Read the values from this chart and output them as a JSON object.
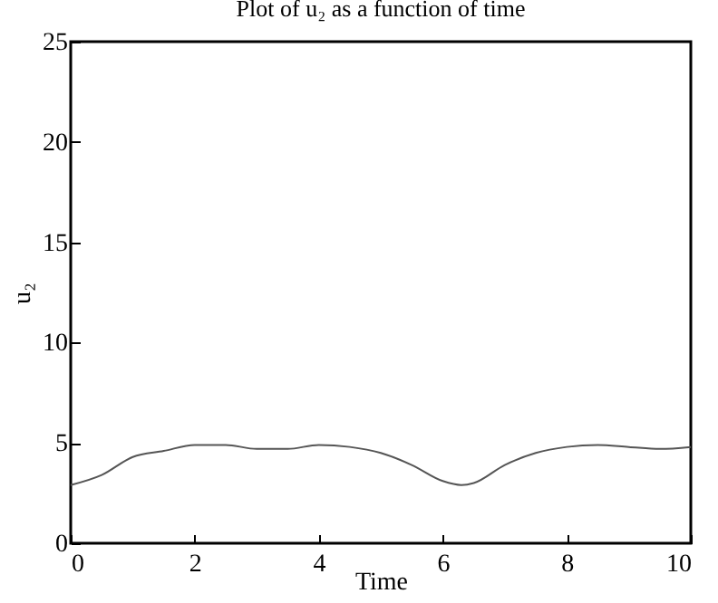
{
  "chart_data": {
    "type": "line",
    "title": "Plot of u₂ as a function of time",
    "xlabel": "Time",
    "ylabel": "u₂",
    "x": [
      0,
      0.5,
      1,
      1.5,
      2,
      2.5,
      3,
      3.5,
      4,
      4.5,
      5,
      5.5,
      6,
      6.3,
      6.5,
      7,
      7.5,
      8,
      8.5,
      9,
      9.5,
      10
    ],
    "series": [
      {
        "color": "#555555",
        "values": [
          2.9,
          3.4,
          4.3,
          4.6,
          4.9,
          4.9,
          4.7,
          4.7,
          4.9,
          4.8,
          4.5,
          3.9,
          3.1,
          2.9,
          3.0,
          3.9,
          4.5,
          4.8,
          4.9,
          4.8,
          4.7,
          4.8
        ]
      }
    ],
    "xlim": [
      0,
      10
    ],
    "xticks": [
      0,
      2,
      4,
      6,
      8,
      10
    ],
    "ylim": [
      0,
      25
    ],
    "yticks": [
      0,
      5,
      10,
      15,
      20,
      25
    ],
    "grid": false,
    "marker": "none",
    "line_style": "solid"
  }
}
